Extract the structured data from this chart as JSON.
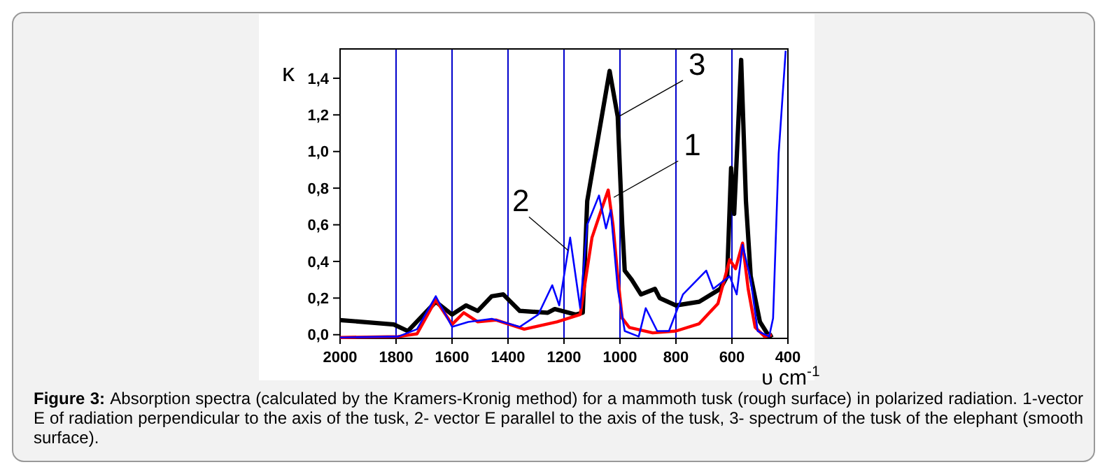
{
  "chart_data": {
    "type": "line",
    "xlabel": "υ cm$^{-1}$",
    "ylabel": "κ",
    "xlim": [
      2000,
      400
    ],
    "xticks": [
      2000,
      1800,
      1600,
      1400,
      1200,
      1000,
      800,
      600,
      400
    ],
    "ylim": [
      -0.02,
      1.56
    ],
    "yticks": [
      {
        "value": 0,
        "label": "0,0"
      },
      {
        "value": 0.2,
        "label": "0,2"
      },
      {
        "value": 0.4,
        "label": "0,4"
      },
      {
        "value": 0.6,
        "label": "0,6"
      },
      {
        "value": 0.8,
        "label": "0,8"
      },
      {
        "value": 1.0,
        "label": "1,0"
      },
      {
        "value": 1.2,
        "label": "1,2"
      },
      {
        "value": 1.4,
        "label": "1,4"
      }
    ],
    "grid": "x",
    "line_style": "solid",
    "series": [
      {
        "color": "#000000",
        "x": [
          2000,
          1808,
          1758,
          1658,
          1600,
          1550,
          1508,
          1458,
          1417,
          1358,
          1258,
          1233,
          1158,
          1133,
          1117,
          1037,
          1008,
          992,
          983,
          958,
          925,
          875,
          858,
          800,
          717,
          642,
          617,
          603,
          592,
          567,
          550,
          533,
          500,
          467,
          455
        ],
        "values": [
          0.08,
          0.056,
          0.02,
          0.18,
          0.11,
          0.16,
          0.13,
          0.21,
          0.22,
          0.13,
          0.12,
          0.14,
          0.11,
          0.12,
          0.73,
          1.44,
          1.19,
          0.6,
          0.35,
          0.3,
          0.22,
          0.25,
          0.2,
          0.16,
          0.18,
          0.25,
          0.32,
          0.91,
          0.66,
          1.5,
          0.73,
          0.32,
          0.07,
          -0.01,
          0.0
        ]
      },
      {
        "color": "#ff0000",
        "x": [
          2000,
          1792,
          1725,
          1658,
          1600,
          1558,
          1508,
          1442,
          1342,
          1225,
          1142,
          1100,
          1067,
          1042,
          1025,
          1008,
          992,
          967,
          883,
          800,
          717,
          650,
          608,
          587,
          562,
          542,
          517,
          483,
          458
        ],
        "values": [
          -0.015,
          -0.01,
          0.005,
          0.19,
          0.056,
          0.12,
          0.07,
          0.08,
          0.03,
          0.07,
          0.11,
          0.53,
          0.68,
          0.79,
          0.6,
          0.32,
          0.09,
          0.04,
          0.01,
          0.02,
          0.06,
          0.17,
          0.41,
          0.36,
          0.5,
          0.25,
          0.04,
          -0.01,
          0.0
        ]
      },
      {
        "color": "#0000ff",
        "x": [
          2000,
          1792,
          1725,
          1658,
          1600,
          1542,
          1458,
          1358,
          1292,
          1242,
          1217,
          1178,
          1142,
          1117,
          1075,
          1050,
          1033,
          1008,
          983,
          933,
          908,
          867,
          825,
          775,
          692,
          667,
          625,
          608,
          583,
          562,
          533,
          508,
          467,
          453,
          433,
          408
        ],
        "values": [
          -0.015,
          -0.01,
          0.03,
          0.21,
          0.043,
          0.07,
          0.087,
          0.043,
          0.11,
          0.27,
          0.16,
          0.53,
          0.145,
          0.6,
          0.76,
          0.58,
          0.68,
          0.25,
          0.02,
          -0.01,
          0.145,
          0.02,
          0.02,
          0.22,
          0.35,
          0.25,
          0.3,
          0.32,
          0.22,
          0.49,
          0.3,
          0.02,
          -0.01,
          0.09,
          0.99,
          1.55
        ]
      }
    ],
    "annotations": [
      {
        "text": "1",
        "x": 1022,
        "y": 0.75
      },
      {
        "text": "2",
        "x": 1185,
        "y": 0.46
      },
      {
        "text": "3",
        "x": 1005,
        "y": 1.19
      },
      "Figure 3:",
      "Absorption spectra (calculated by the Kramers-Kronig method) for a mammoth tusk (rough surface) in polarized radiation. 1-vector E of radiation perpendicular to the axis of the tusk, 2- vector E parallel to the axis of the tusk, 3- spectrum of the tusk of the elephant (smooth surface)."
    ]
  }
}
